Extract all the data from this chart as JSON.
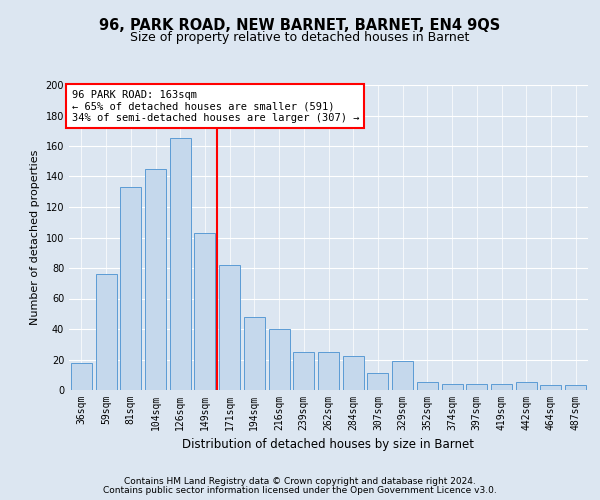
{
  "title": "96, PARK ROAD, NEW BARNET, BARNET, EN4 9QS",
  "subtitle": "Size of property relative to detached houses in Barnet",
  "xlabel": "Distribution of detached houses by size in Barnet",
  "ylabel": "Number of detached properties",
  "categories": [
    "36sqm",
    "59sqm",
    "81sqm",
    "104sqm",
    "126sqm",
    "149sqm",
    "171sqm",
    "194sqm",
    "216sqm",
    "239sqm",
    "262sqm",
    "284sqm",
    "307sqm",
    "329sqm",
    "352sqm",
    "374sqm",
    "397sqm",
    "419sqm",
    "442sqm",
    "464sqm",
    "487sqm"
  ],
  "values": [
    18,
    76,
    133,
    145,
    165,
    103,
    82,
    48,
    40,
    25,
    25,
    22,
    11,
    19,
    5,
    4,
    4,
    4,
    5,
    3,
    3
  ],
  "bar_color": "#c5d8ec",
  "bar_edge_color": "#5b9bd5",
  "vline_x": 5.5,
  "vline_color": "red",
  "annotation_line1": "96 PARK ROAD: 163sqm",
  "annotation_line2": "← 65% of detached houses are smaller (591)",
  "annotation_line3": "34% of semi-detached houses are larger (307) →",
  "annotation_box_color": "white",
  "annotation_box_edge_color": "red",
  "ylim": [
    0,
    200
  ],
  "yticks": [
    0,
    20,
    40,
    60,
    80,
    100,
    120,
    140,
    160,
    180,
    200
  ],
  "background_color": "#dce6f1",
  "grid_color": "white",
  "footer_line1": "Contains HM Land Registry data © Crown copyright and database right 2024.",
  "footer_line2": "Contains public sector information licensed under the Open Government Licence v3.0.",
  "title_fontsize": 10.5,
  "subtitle_fontsize": 9,
  "xlabel_fontsize": 8.5,
  "ylabel_fontsize": 8,
  "tick_fontsize": 7,
  "annotation_fontsize": 7.5,
  "footer_fontsize": 6.5
}
